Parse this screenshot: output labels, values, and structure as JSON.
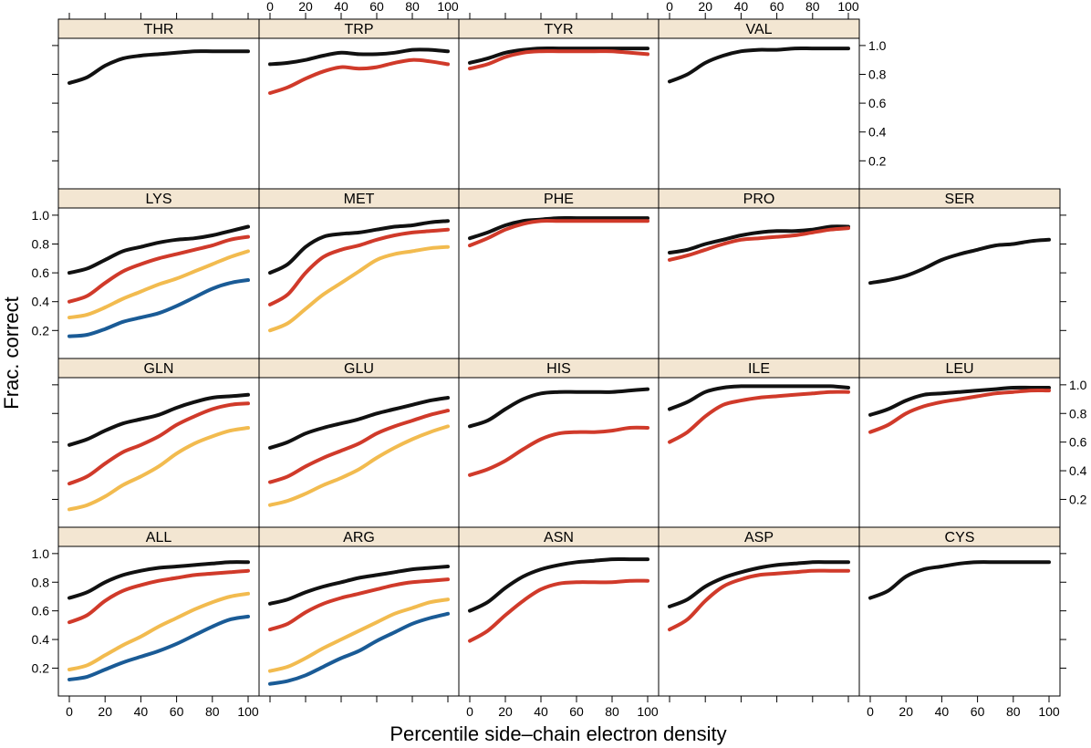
{
  "chart_data": {
    "type": "line",
    "xlabel": "Percentile side–chain electron density",
    "ylabel": "Frac. correct",
    "xlim": [
      0,
      100
    ],
    "ylim": [
      0.05,
      1.05
    ],
    "x_ticks": [
      0,
      20,
      40,
      60,
      80,
      100
    ],
    "y_ticks": [
      0.2,
      0.4,
      0.6,
      0.8,
      1.0
    ],
    "x_tick_labels": [
      "0",
      "20",
      "40",
      "60",
      "80",
      "100"
    ],
    "y_tick_labels": [
      "0.2",
      "0.4",
      "0.6",
      "0.8",
      "1.0"
    ],
    "grid": false,
    "colors": {
      "black": "#111111",
      "red": "#d03a2a",
      "orange": "#f2bb4f",
      "blue": "#1a5b96",
      "strip": "#f3e6d2"
    },
    "x": [
      0,
      10,
      20,
      30,
      40,
      50,
      60,
      70,
      80,
      90,
      100
    ],
    "panels": [
      {
        "name": "THR",
        "series": [
          {
            "color": "black",
            "y": [
              0.74,
              0.78,
              0.86,
              0.91,
              0.93,
              0.94,
              0.95,
              0.96,
              0.96,
              0.96,
              0.96
            ]
          }
        ]
      },
      {
        "name": "TRP",
        "series": [
          {
            "color": "black",
            "y": [
              0.87,
              0.88,
              0.9,
              0.93,
              0.95,
              0.94,
              0.94,
              0.95,
              0.97,
              0.97,
              0.96
            ]
          },
          {
            "color": "red",
            "y": [
              0.67,
              0.71,
              0.77,
              0.82,
              0.85,
              0.84,
              0.85,
              0.88,
              0.9,
              0.89,
              0.87
            ]
          }
        ]
      },
      {
        "name": "TYR",
        "series": [
          {
            "color": "black",
            "y": [
              0.88,
              0.91,
              0.95,
              0.97,
              0.98,
              0.98,
              0.98,
              0.98,
              0.98,
              0.98,
              0.98
            ]
          },
          {
            "color": "red",
            "y": [
              0.84,
              0.87,
              0.92,
              0.95,
              0.96,
              0.96,
              0.96,
              0.96,
              0.96,
              0.95,
              0.94
            ]
          }
        ]
      },
      {
        "name": "VAL",
        "series": [
          {
            "color": "black",
            "y": [
              0.75,
              0.8,
              0.88,
              0.93,
              0.96,
              0.97,
              0.97,
              0.98,
              0.98,
              0.98,
              0.98
            ]
          }
        ]
      },
      {
        "name": "LYS",
        "series": [
          {
            "color": "black",
            "y": [
              0.6,
              0.63,
              0.69,
              0.75,
              0.78,
              0.81,
              0.83,
              0.84,
              0.86,
              0.89,
              0.92
            ]
          },
          {
            "color": "red",
            "y": [
              0.4,
              0.44,
              0.53,
              0.61,
              0.66,
              0.7,
              0.73,
              0.76,
              0.79,
              0.83,
              0.85
            ]
          },
          {
            "color": "orange",
            "y": [
              0.29,
              0.31,
              0.36,
              0.42,
              0.47,
              0.52,
              0.56,
              0.61,
              0.66,
              0.71,
              0.75
            ]
          },
          {
            "color": "blue",
            "y": [
              0.16,
              0.17,
              0.21,
              0.26,
              0.29,
              0.32,
              0.37,
              0.43,
              0.49,
              0.53,
              0.55
            ]
          }
        ]
      },
      {
        "name": "MET",
        "series": [
          {
            "color": "black",
            "y": [
              0.6,
              0.66,
              0.78,
              0.85,
              0.87,
              0.88,
              0.9,
              0.92,
              0.93,
              0.95,
              0.96
            ]
          },
          {
            "color": "red",
            "y": [
              0.38,
              0.45,
              0.6,
              0.71,
              0.76,
              0.79,
              0.83,
              0.86,
              0.88,
              0.89,
              0.9
            ]
          },
          {
            "color": "orange",
            "y": [
              0.2,
              0.25,
              0.35,
              0.45,
              0.53,
              0.61,
              0.69,
              0.73,
              0.75,
              0.77,
              0.78
            ]
          }
        ]
      },
      {
        "name": "PHE",
        "series": [
          {
            "color": "black",
            "y": [
              0.84,
              0.88,
              0.93,
              0.96,
              0.97,
              0.98,
              0.98,
              0.98,
              0.98,
              0.98,
              0.98
            ]
          },
          {
            "color": "red",
            "y": [
              0.79,
              0.84,
              0.9,
              0.94,
              0.96,
              0.96,
              0.96,
              0.96,
              0.96,
              0.96,
              0.96
            ]
          }
        ]
      },
      {
        "name": "PRO",
        "series": [
          {
            "color": "black",
            "y": [
              0.74,
              0.76,
              0.8,
              0.83,
              0.86,
              0.88,
              0.89,
              0.89,
              0.9,
              0.92,
              0.92
            ]
          },
          {
            "color": "red",
            "y": [
              0.69,
              0.72,
              0.76,
              0.8,
              0.83,
              0.84,
              0.85,
              0.86,
              0.88,
              0.9,
              0.91
            ]
          }
        ]
      },
      {
        "name": "SER",
        "series": [
          {
            "color": "black",
            "y": [
              0.53,
              0.55,
              0.58,
              0.63,
              0.69,
              0.73,
              0.76,
              0.79,
              0.8,
              0.82,
              0.83
            ]
          }
        ]
      },
      {
        "name": "GLN",
        "series": [
          {
            "color": "black",
            "y": [
              0.58,
              0.62,
              0.68,
              0.73,
              0.76,
              0.79,
              0.84,
              0.88,
              0.91,
              0.92,
              0.93
            ]
          },
          {
            "color": "red",
            "y": [
              0.31,
              0.36,
              0.45,
              0.53,
              0.58,
              0.64,
              0.72,
              0.78,
              0.83,
              0.86,
              0.87
            ]
          },
          {
            "color": "orange",
            "y": [
              0.13,
              0.16,
              0.22,
              0.3,
              0.36,
              0.43,
              0.52,
              0.59,
              0.64,
              0.68,
              0.7
            ]
          }
        ]
      },
      {
        "name": "GLU",
        "series": [
          {
            "color": "black",
            "y": [
              0.56,
              0.6,
              0.66,
              0.7,
              0.73,
              0.76,
              0.8,
              0.83,
              0.86,
              0.89,
              0.91
            ]
          },
          {
            "color": "red",
            "y": [
              0.32,
              0.36,
              0.43,
              0.49,
              0.54,
              0.59,
              0.66,
              0.71,
              0.75,
              0.79,
              0.82
            ]
          },
          {
            "color": "orange",
            "y": [
              0.16,
              0.19,
              0.24,
              0.3,
              0.35,
              0.41,
              0.49,
              0.56,
              0.62,
              0.67,
              0.71
            ]
          }
        ]
      },
      {
        "name": "HIS",
        "series": [
          {
            "color": "black",
            "y": [
              0.71,
              0.75,
              0.83,
              0.9,
              0.94,
              0.95,
              0.95,
              0.95,
              0.95,
              0.96,
              0.97
            ]
          },
          {
            "color": "red",
            "y": [
              0.37,
              0.41,
              0.47,
              0.55,
              0.62,
              0.66,
              0.67,
              0.67,
              0.68,
              0.7,
              0.7
            ]
          }
        ]
      },
      {
        "name": "ILE",
        "series": [
          {
            "color": "black",
            "y": [
              0.83,
              0.88,
              0.95,
              0.98,
              0.99,
              0.99,
              0.99,
              0.99,
              0.99,
              0.99,
              0.98
            ]
          },
          {
            "color": "red",
            "y": [
              0.6,
              0.67,
              0.78,
              0.86,
              0.89,
              0.91,
              0.92,
              0.93,
              0.94,
              0.95,
              0.95
            ]
          }
        ]
      },
      {
        "name": "LEU",
        "series": [
          {
            "color": "black",
            "y": [
              0.79,
              0.83,
              0.89,
              0.93,
              0.94,
              0.95,
              0.96,
              0.97,
              0.98,
              0.98,
              0.98
            ]
          },
          {
            "color": "red",
            "y": [
              0.67,
              0.72,
              0.8,
              0.85,
              0.88,
              0.9,
              0.92,
              0.94,
              0.95,
              0.96,
              0.96
            ]
          }
        ]
      },
      {
        "name": "ALL",
        "series": [
          {
            "color": "black",
            "y": [
              0.69,
              0.73,
              0.8,
              0.85,
              0.88,
              0.9,
              0.91,
              0.92,
              0.93,
              0.94,
              0.94
            ]
          },
          {
            "color": "red",
            "y": [
              0.52,
              0.57,
              0.67,
              0.74,
              0.78,
              0.81,
              0.83,
              0.85,
              0.86,
              0.87,
              0.88
            ]
          },
          {
            "color": "orange",
            "y": [
              0.19,
              0.22,
              0.29,
              0.36,
              0.42,
              0.49,
              0.55,
              0.61,
              0.66,
              0.7,
              0.72
            ]
          },
          {
            "color": "blue",
            "y": [
              0.12,
              0.14,
              0.19,
              0.24,
              0.28,
              0.32,
              0.37,
              0.43,
              0.49,
              0.54,
              0.56
            ]
          }
        ]
      },
      {
        "name": "ARG",
        "series": [
          {
            "color": "black",
            "y": [
              0.65,
              0.68,
              0.73,
              0.77,
              0.8,
              0.83,
              0.85,
              0.87,
              0.89,
              0.9,
              0.91
            ]
          },
          {
            "color": "red",
            "y": [
              0.47,
              0.51,
              0.59,
              0.65,
              0.69,
              0.72,
              0.75,
              0.78,
              0.8,
              0.81,
              0.82
            ]
          },
          {
            "color": "orange",
            "y": [
              0.18,
              0.21,
              0.27,
              0.34,
              0.4,
              0.46,
              0.52,
              0.58,
              0.62,
              0.66,
              0.68
            ]
          },
          {
            "color": "blue",
            "y": [
              0.09,
              0.11,
              0.15,
              0.21,
              0.27,
              0.32,
              0.39,
              0.45,
              0.51,
              0.55,
              0.58
            ]
          }
        ]
      },
      {
        "name": "ASN",
        "series": [
          {
            "color": "black",
            "y": [
              0.6,
              0.66,
              0.76,
              0.84,
              0.89,
              0.92,
              0.94,
              0.95,
              0.96,
              0.96,
              0.96
            ]
          },
          {
            "color": "red",
            "y": [
              0.39,
              0.46,
              0.57,
              0.67,
              0.75,
              0.79,
              0.8,
              0.8,
              0.8,
              0.81,
              0.81
            ]
          }
        ]
      },
      {
        "name": "ASP",
        "series": [
          {
            "color": "black",
            "y": [
              0.63,
              0.68,
              0.77,
              0.83,
              0.87,
              0.9,
              0.92,
              0.93,
              0.94,
              0.94,
              0.94
            ]
          },
          {
            "color": "red",
            "y": [
              0.47,
              0.54,
              0.67,
              0.77,
              0.82,
              0.85,
              0.86,
              0.87,
              0.88,
              0.88,
              0.88
            ]
          }
        ]
      },
      {
        "name": "CYS",
        "series": [
          {
            "color": "black",
            "y": [
              0.69,
              0.74,
              0.84,
              0.89,
              0.91,
              0.93,
              0.94,
              0.94,
              0.94,
              0.94,
              0.94
            ]
          }
        ]
      }
    ]
  }
}
